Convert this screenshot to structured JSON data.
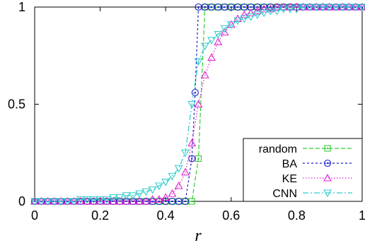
{
  "chart_data": {
    "type": "scatter",
    "title": "",
    "xlabel": "r",
    "ylabel": "",
    "xlim": [
      0,
      1
    ],
    "ylim": [
      0,
      1
    ],
    "x_ticks": [
      "0",
      "0.2",
      "0.4",
      "0.6",
      "0.8",
      "1"
    ],
    "y_ticks": [
      "0",
      "0.5",
      "1"
    ],
    "grid": false,
    "legend_position": "bottom-right",
    "series": [
      {
        "name": "random",
        "color": "#33cc33",
        "marker": "square",
        "x": [
          0.0,
          0.02,
          0.04,
          0.06,
          0.08,
          0.1,
          0.12,
          0.14,
          0.16,
          0.18,
          0.2,
          0.22,
          0.24,
          0.26,
          0.28,
          0.3,
          0.32,
          0.34,
          0.36,
          0.38,
          0.4,
          0.42,
          0.44,
          0.46,
          0.48,
          0.5,
          0.52,
          0.54,
          0.56,
          0.58,
          0.6,
          0.62,
          0.64,
          0.66,
          0.68,
          0.7,
          0.72,
          0.74,
          0.76,
          0.78,
          0.8,
          0.82,
          0.84,
          0.86,
          0.88,
          0.9,
          0.92,
          0.94,
          0.96,
          0.98,
          1.0
        ],
        "values": [
          0,
          0,
          0,
          0,
          0,
          0,
          0,
          0,
          0,
          0,
          0,
          0,
          0,
          0,
          0,
          0,
          0,
          0,
          0,
          0,
          0,
          0,
          0,
          0,
          0,
          0.22,
          1,
          1,
          1,
          1,
          1,
          1,
          1,
          1,
          1,
          1,
          1,
          1,
          1,
          1,
          1,
          1,
          1,
          1,
          1,
          1,
          1,
          1,
          1,
          1,
          1
        ]
      },
      {
        "name": "BA",
        "color": "#1a1acc",
        "marker": "circle",
        "x": [
          0.0,
          0.02,
          0.04,
          0.06,
          0.08,
          0.1,
          0.12,
          0.14,
          0.16,
          0.18,
          0.2,
          0.22,
          0.24,
          0.26,
          0.28,
          0.3,
          0.32,
          0.34,
          0.36,
          0.38,
          0.4,
          0.42,
          0.44,
          0.46,
          0.48,
          0.49,
          0.5,
          0.52,
          0.54,
          0.56,
          0.58,
          0.6,
          0.62,
          0.64,
          0.66,
          0.68,
          0.7,
          0.72,
          0.74,
          0.76,
          0.78,
          0.8,
          0.82,
          0.84,
          0.86,
          0.88,
          0.9,
          0.92,
          0.94,
          0.96,
          0.98,
          1.0
        ],
        "values": [
          0,
          0,
          0,
          0,
          0,
          0,
          0,
          0,
          0,
          0,
          0,
          0,
          0,
          0,
          0,
          0,
          0,
          0,
          0,
          0,
          0,
          0,
          0,
          0,
          0.22,
          0.56,
          1,
          1,
          1,
          1,
          1,
          1,
          1,
          1,
          1,
          1,
          1,
          1,
          1,
          1,
          1,
          1,
          1,
          1,
          1,
          1,
          1,
          1,
          1,
          1,
          1,
          1
        ]
      },
      {
        "name": "KE",
        "color": "#e020d0",
        "marker": "triangle-up",
        "x": [
          0.0,
          0.02,
          0.04,
          0.06,
          0.08,
          0.1,
          0.12,
          0.14,
          0.16,
          0.18,
          0.2,
          0.22,
          0.24,
          0.26,
          0.28,
          0.3,
          0.32,
          0.34,
          0.36,
          0.38,
          0.4,
          0.42,
          0.44,
          0.46,
          0.48,
          0.5,
          0.52,
          0.54,
          0.56,
          0.58,
          0.6,
          0.62,
          0.64,
          0.66,
          0.68,
          0.7,
          0.72,
          0.74,
          0.76,
          0.78,
          0.8,
          0.82,
          0.84,
          0.86,
          0.88,
          0.9,
          0.92,
          0.94,
          0.96,
          0.98,
          1.0
        ],
        "values": [
          0,
          0,
          0,
          0,
          0,
          0,
          0,
          0,
          0,
          0,
          0,
          0,
          0,
          0,
          0,
          0,
          0,
          0,
          0.01,
          0.01,
          0.02,
          0.04,
          0.08,
          0.15,
          0.3,
          0.5,
          0.65,
          0.74,
          0.82,
          0.87,
          0.91,
          0.94,
          0.96,
          0.97,
          0.98,
          0.99,
          0.99,
          1,
          1,
          1,
          1,
          1,
          1,
          1,
          1,
          1,
          1,
          1,
          1,
          1,
          1
        ]
      },
      {
        "name": "CNN",
        "color": "#33cccc",
        "marker": "triangle-down",
        "x": [
          0.0,
          0.02,
          0.04,
          0.06,
          0.08,
          0.1,
          0.12,
          0.14,
          0.16,
          0.18,
          0.2,
          0.22,
          0.24,
          0.26,
          0.28,
          0.3,
          0.32,
          0.34,
          0.36,
          0.38,
          0.4,
          0.42,
          0.44,
          0.46,
          0.48,
          0.5,
          0.52,
          0.54,
          0.56,
          0.58,
          0.6,
          0.62,
          0.64,
          0.66,
          0.68,
          0.7,
          0.72,
          0.74,
          0.76,
          0.78,
          0.8,
          0.82,
          0.84,
          0.86,
          0.88,
          0.9,
          0.92,
          0.94,
          0.96,
          0.98,
          1.0
        ],
        "values": [
          0,
          0,
          0,
          0,
          0,
          0,
          0,
          0.01,
          0.01,
          0.01,
          0.01,
          0.01,
          0.02,
          0.02,
          0.03,
          0.03,
          0.04,
          0.05,
          0.06,
          0.08,
          0.1,
          0.13,
          0.17,
          0.25,
          0.5,
          0.72,
          0.8,
          0.83,
          0.86,
          0.89,
          0.91,
          0.93,
          0.94,
          0.95,
          0.96,
          0.97,
          0.98,
          0.98,
          0.99,
          0.99,
          0.99,
          1,
          1,
          1,
          1,
          1,
          1,
          1,
          1,
          1,
          1
        ]
      }
    ]
  }
}
